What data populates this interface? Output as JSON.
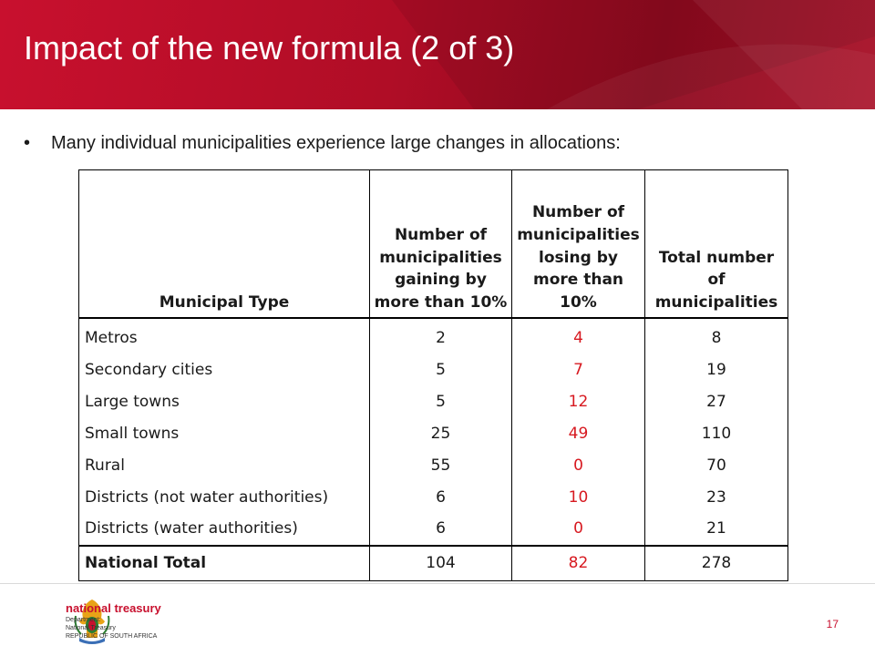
{
  "slide": {
    "title": "Impact of the new formula (2 of 3)",
    "bullet": "Many individual municipalities experience large  changes in allocations:",
    "page_number": "17"
  },
  "table": {
    "headers": [
      "Municipal Type",
      "Number of municipalities gaining by more than 10%",
      "Number of municipalities losing by more than 10%",
      "Total number of municipalities"
    ],
    "rows": [
      {
        "type": "Metros",
        "gaining": "2",
        "losing": "4",
        "total": "8"
      },
      {
        "type": "Secondary cities",
        "gaining": "5",
        "losing": "7",
        "total": "19"
      },
      {
        "type": "Large towns",
        "gaining": "5",
        "losing": "12",
        "total": "27"
      },
      {
        "type": "Small towns",
        "gaining": "25",
        "losing": "49",
        "total": "110"
      },
      {
        "type": "Rural",
        "gaining": "55",
        "losing": "0",
        "total": "70"
      },
      {
        "type": "Districts (not water authorities)",
        "gaining": "6",
        "losing": "10",
        "total": "23"
      },
      {
        "type": "Districts (water authorities)",
        "gaining": "6",
        "losing": "0",
        "total": "21"
      }
    ],
    "total": {
      "label": "National Total",
      "gaining": "104",
      "losing": "82",
      "total": "278"
    }
  },
  "footer": {
    "org_name": "national treasury",
    "sub_lines": [
      "Department:",
      "National Treasury",
      "REPUBLIC OF SOUTH AFRICA"
    ]
  },
  "colors": {
    "header_red": "#c8102e",
    "losing_text": "#d71920"
  },
  "icons": [
    "coat-of-arms-icon"
  ]
}
